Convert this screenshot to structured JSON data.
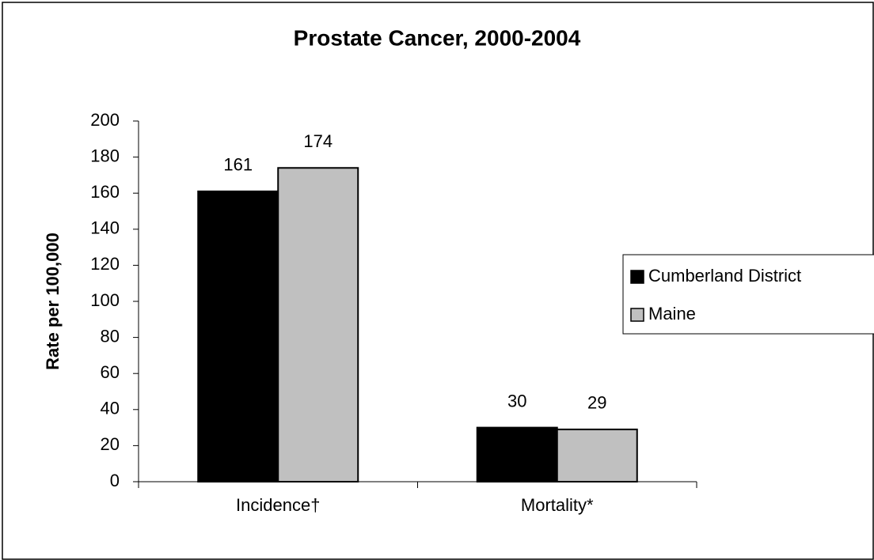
{
  "chart_data": {
    "type": "bar",
    "title": "Prostate Cancer, 2000-2004",
    "y_label": "Rate per 100,000",
    "categories": [
      "Incidence†",
      "Mortality*"
    ],
    "series": [
      {
        "name": "Cumberland District",
        "color": "#000000",
        "values": [
          161,
          30
        ]
      },
      {
        "name": "Maine",
        "color": "#c0c0c0",
        "values": [
          174,
          29
        ]
      }
    ],
    "ylim": [
      0,
      200
    ],
    "yticks": [
      0,
      20,
      40,
      60,
      80,
      100,
      120,
      140,
      160,
      180,
      200
    ],
    "legend": "right"
  }
}
